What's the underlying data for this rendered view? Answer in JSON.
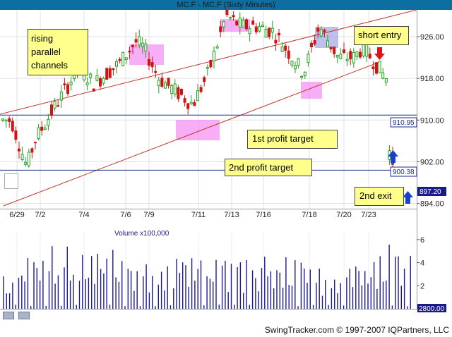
{
  "window": {
    "title": "MC.F - MC.F (Sixty Minutes)"
  },
  "footer": {
    "credit": "SwingTracker.com © 1997-2007 IQPartners, LLC"
  },
  "annotations": {
    "rising": "rising\nparallel\nchannels",
    "short": "short entry",
    "first": "1st profit target",
    "second": "2nd profit target",
    "exit": "2nd exit"
  },
  "price_tags": {
    "t1": "910.95",
    "t2": "900.38",
    "last": "897.20"
  },
  "icons": {
    "chart_options": "chart-options-icon",
    "zoom_in": "zoom-in-icon",
    "zoom_out": "zoom-out-icon"
  },
  "chart_data": {
    "type": "candlestick",
    "title": "MC.F - MC.F (Sixty Minutes)",
    "x_ticks": [
      "6/29",
      "7/2",
      "7/4",
      "7/6",
      "7/9",
      "7/11",
      "7/13",
      "7/16",
      "7/18",
      "7/20",
      "7/23"
    ],
    "price_axis": {
      "ylim": [
        893,
        931
      ],
      "ticks": [
        926,
        918,
        910,
        902,
        894
      ]
    },
    "horizontal_levels": [
      910.95,
      900.38
    ],
    "last_price": 897.2,
    "volume_axis": {
      "label": "Volume x100,000",
      "ticks": [
        6,
        4,
        2
      ],
      "last_value": "2800.00"
    },
    "price_path": [
      {
        "date": "6/29",
        "value": 910
      },
      {
        "date": "6/29",
        "value": 901
      },
      {
        "date": "7/2",
        "value": 906
      },
      {
        "date": "7/2",
        "value": 911
      },
      {
        "date": "7/4",
        "value": 920
      },
      {
        "date": "7/4",
        "value": 917
      },
      {
        "date": "7/6",
        "value": 921
      },
      {
        "date": "7/6",
        "value": 925
      },
      {
        "date": "7/9",
        "value": 924
      },
      {
        "date": "7/9",
        "value": 918
      },
      {
        "date": "7/11",
        "value": 913
      },
      {
        "date": "7/11",
        "value": 919
      },
      {
        "date": "7/13",
        "value": 930
      },
      {
        "date": "7/13",
        "value": 928
      },
      {
        "date": "7/16",
        "value": 928
      },
      {
        "date": "7/16",
        "value": 927
      },
      {
        "date": "7/18",
        "value": 919
      },
      {
        "date": "7/18",
        "value": 928
      },
      {
        "date": "7/20",
        "value": 922
      },
      {
        "date": "7/20",
        "value": 922
      },
      {
        "date": "7/23",
        "value": 924
      },
      {
        "date": "7/23",
        "value": 918
      },
      {
        "date": "7/23",
        "value": 910
      },
      {
        "date": "7/23",
        "value": 897
      }
    ],
    "volume_path": [
      {
        "date": "6/29",
        "value": 3
      },
      {
        "date": "7/2",
        "value": 5.6
      },
      {
        "date": "7/4",
        "value": 4.6
      },
      {
        "date": "7/6",
        "value": 5.1
      },
      {
        "date": "7/9",
        "value": 4.7
      },
      {
        "date": "7/11",
        "value": 4.9
      },
      {
        "date": "7/13",
        "value": 4.3
      },
      {
        "date": "7/16",
        "value": 4.5
      },
      {
        "date": "7/18",
        "value": 4.1
      },
      {
        "date": "7/20",
        "value": 3.6
      },
      {
        "date": "7/23",
        "value": 5.2
      }
    ]
  }
}
